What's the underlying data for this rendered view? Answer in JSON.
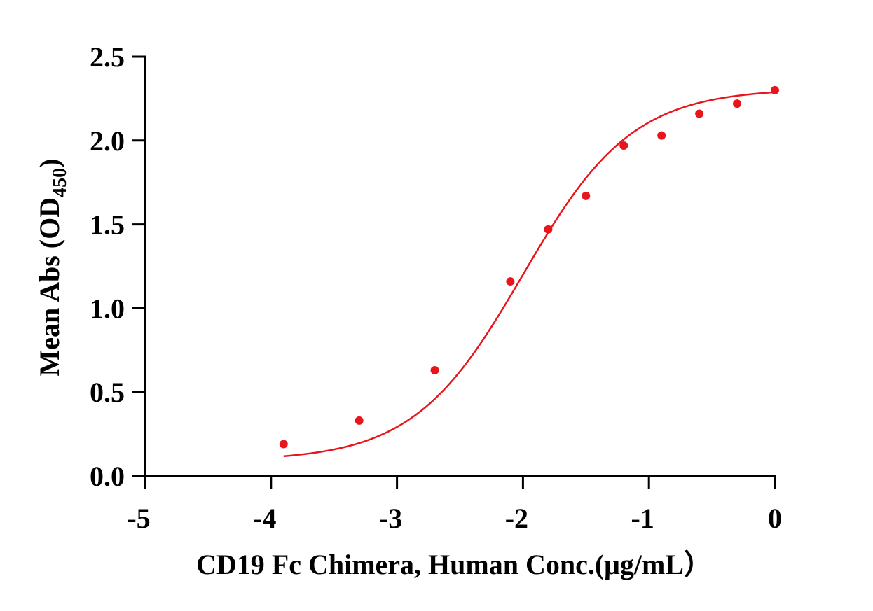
{
  "chart_data": {
    "type": "scatter",
    "title": "",
    "xlabel": "CD19 Fc Chimera, Human  Conc.(μg/mL）",
    "ylabel": {
      "main": "Mean Abs (OD",
      "subscript": "450",
      "close": ")"
    },
    "xlim": [
      -5,
      0
    ],
    "ylim": [
      0,
      2.5
    ],
    "x_ticks": [
      "-5",
      "-4",
      "-3",
      "-2",
      "-1",
      "0"
    ],
    "y_ticks": [
      "0.0",
      "0.5",
      "1.0",
      "1.5",
      "2.0",
      "2.5"
    ],
    "grid": false,
    "legend": "none",
    "color": "#e8161c",
    "series": [
      {
        "x": [
          -3.9,
          -3.3,
          -2.7,
          -2.1,
          -1.8,
          -1.5,
          -1.2,
          -0.9,
          -0.6,
          -0.3,
          0.0
        ],
        "y": [
          0.19,
          0.33,
          0.63,
          1.16,
          1.47,
          1.67,
          1.97,
          2.03,
          2.16,
          2.22,
          2.3
        ]
      }
    ],
    "fit_curve": {
      "model": "four-parameter logistic",
      "bottom": 0.09,
      "top": 2.31,
      "log_ec50": -2.0,
      "hill_slope": 1.0,
      "x_range": [
        -3.9,
        0.0
      ]
    }
  }
}
